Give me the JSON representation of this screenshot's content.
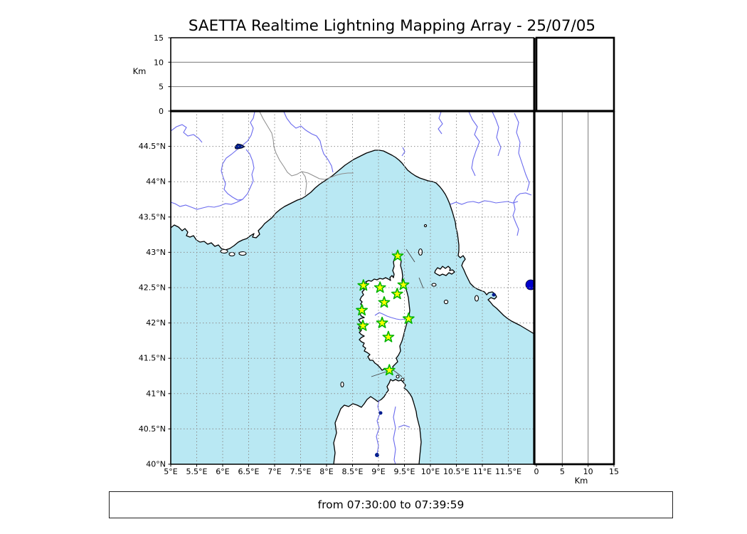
{
  "title": "SAETTA Realtime Lightning Mapping Array - 25/07/05",
  "footer": {
    "time_range": "from 07:30:00 to 07:39:59"
  },
  "axes": {
    "lon_tick_labels": [
      "5°E",
      "5.5°E",
      "6°E",
      "6.5°E",
      "7°E",
      "7.5°E",
      "8°E",
      "8.5°E",
      "9°E",
      "9.5°E",
      "10°E",
      "10.5°E",
      "11°E",
      "11.5°E"
    ],
    "lat_tick_labels": [
      "40°N",
      "40.5°N",
      "41°N",
      "41.5°N",
      "42°N",
      "42.5°N",
      "43°N",
      "43.5°N",
      "44°N",
      "44.5°N"
    ],
    "altitude_tick_labels": [
      "0",
      "5",
      "10",
      "15"
    ],
    "altitude_unit_label_left": "Km",
    "altitude_unit_label_bottom": "Km"
  },
  "colors": {
    "sea": "#b9e8f3",
    "land": "#ffffff",
    "coast": "#000000",
    "grid": "#8f8f8f",
    "panel_grid": "#7a7a7a",
    "river": "#6a6aee",
    "country_border": "#8c8c8c",
    "lake": "#0000cc",
    "lake_small": "#001d8f",
    "station_fill": "#ffff00",
    "station_stroke": "#00b400",
    "frame": "#000000"
  },
  "chart_data": {
    "type": "scatter",
    "title": "SAETTA Realtime Lightning Mapping Array - 25/07/05",
    "subtitle_time_window": "from 07:30:00 to 07:39:59",
    "map_panel": {
      "xlabel_ticks_deg_east": [
        5,
        5.5,
        6,
        6.5,
        7,
        7.5,
        8,
        8.5,
        9,
        9.5,
        10,
        10.5,
        11,
        11.5
      ],
      "ylabel_ticks_deg_north": [
        40,
        40.5,
        41,
        41.5,
        42,
        42.5,
        43,
        43.5,
        44,
        44.5
      ],
      "lon_range": [
        5,
        12
      ],
      "lat_range": [
        40,
        45
      ],
      "grid": "dashed 0.5 degree"
    },
    "altitude_panels": {
      "unit": "Km",
      "range": [
        0,
        15
      ],
      "ticks": [
        0,
        5,
        10,
        15
      ],
      "gridlines": [
        5,
        10
      ],
      "top_panel": "altitude vs longitude (empty)",
      "right_panel": "altitude vs latitude (empty)"
    },
    "lightning_events": [],
    "series": [
      {
        "name": "LMA stations (green stars)",
        "points_lon_lat": [
          [
            9.37,
            42.95
          ],
          [
            8.71,
            42.53
          ],
          [
            9.03,
            42.5
          ],
          [
            9.48,
            42.54
          ],
          [
            9.36,
            42.41
          ],
          [
            9.11,
            42.29
          ],
          [
            8.68,
            42.18
          ],
          [
            9.58,
            42.06
          ],
          [
            9.07,
            42.0
          ],
          [
            8.7,
            41.96
          ],
          [
            9.19,
            41.8
          ],
          [
            9.21,
            41.33
          ]
        ]
      }
    ]
  }
}
